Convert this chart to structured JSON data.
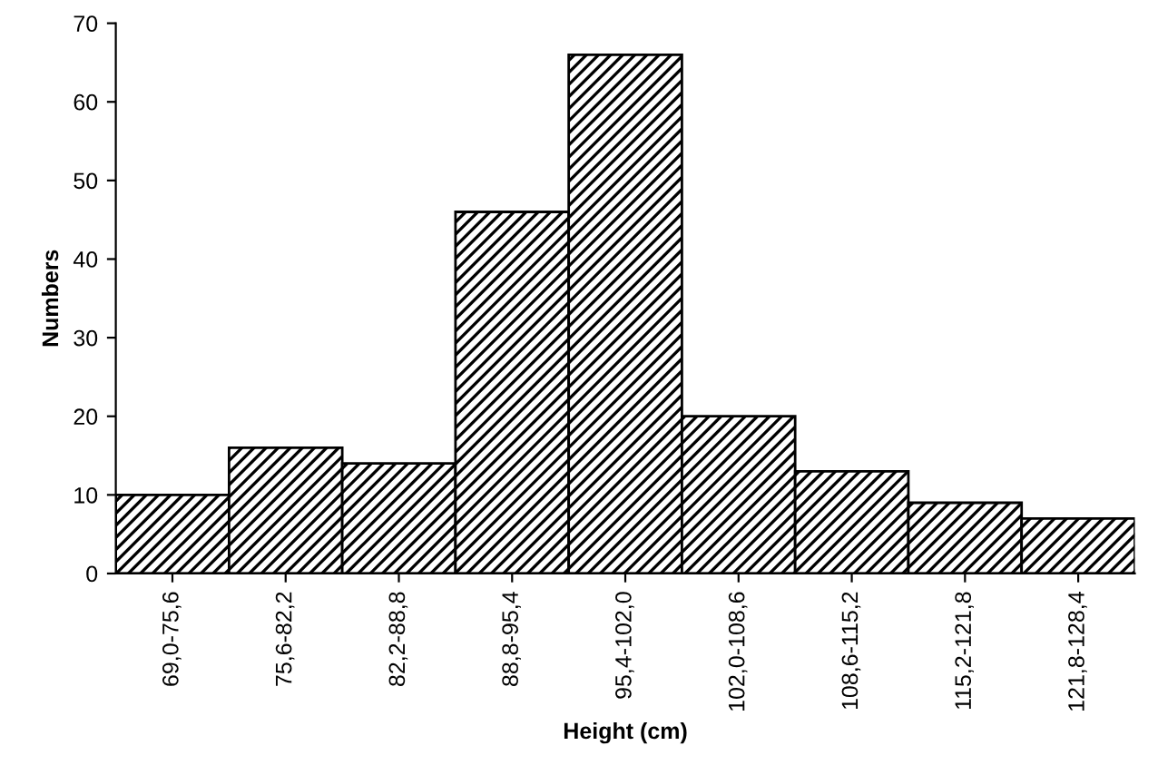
{
  "chart_data": {
    "type": "bar",
    "xlabel": "Height (cm)",
    "ylabel": "Numbers",
    "categories": [
      "69,0-75,6",
      "75,6-82,2",
      "82,2-88,8",
      "88,8-95,4",
      "95,4-102,0",
      "102,0-108,6",
      "108,6-115,2",
      "115,2-121,8",
      "121,8-128,4"
    ],
    "values": [
      10,
      16,
      14,
      46,
      66,
      20,
      13,
      9,
      7
    ],
    "color": "#000000",
    "ylim": [
      0,
      70
    ],
    "yticks": [
      0,
      10,
      20,
      30,
      40,
      50,
      60,
      70
    ],
    "grid": false
  }
}
